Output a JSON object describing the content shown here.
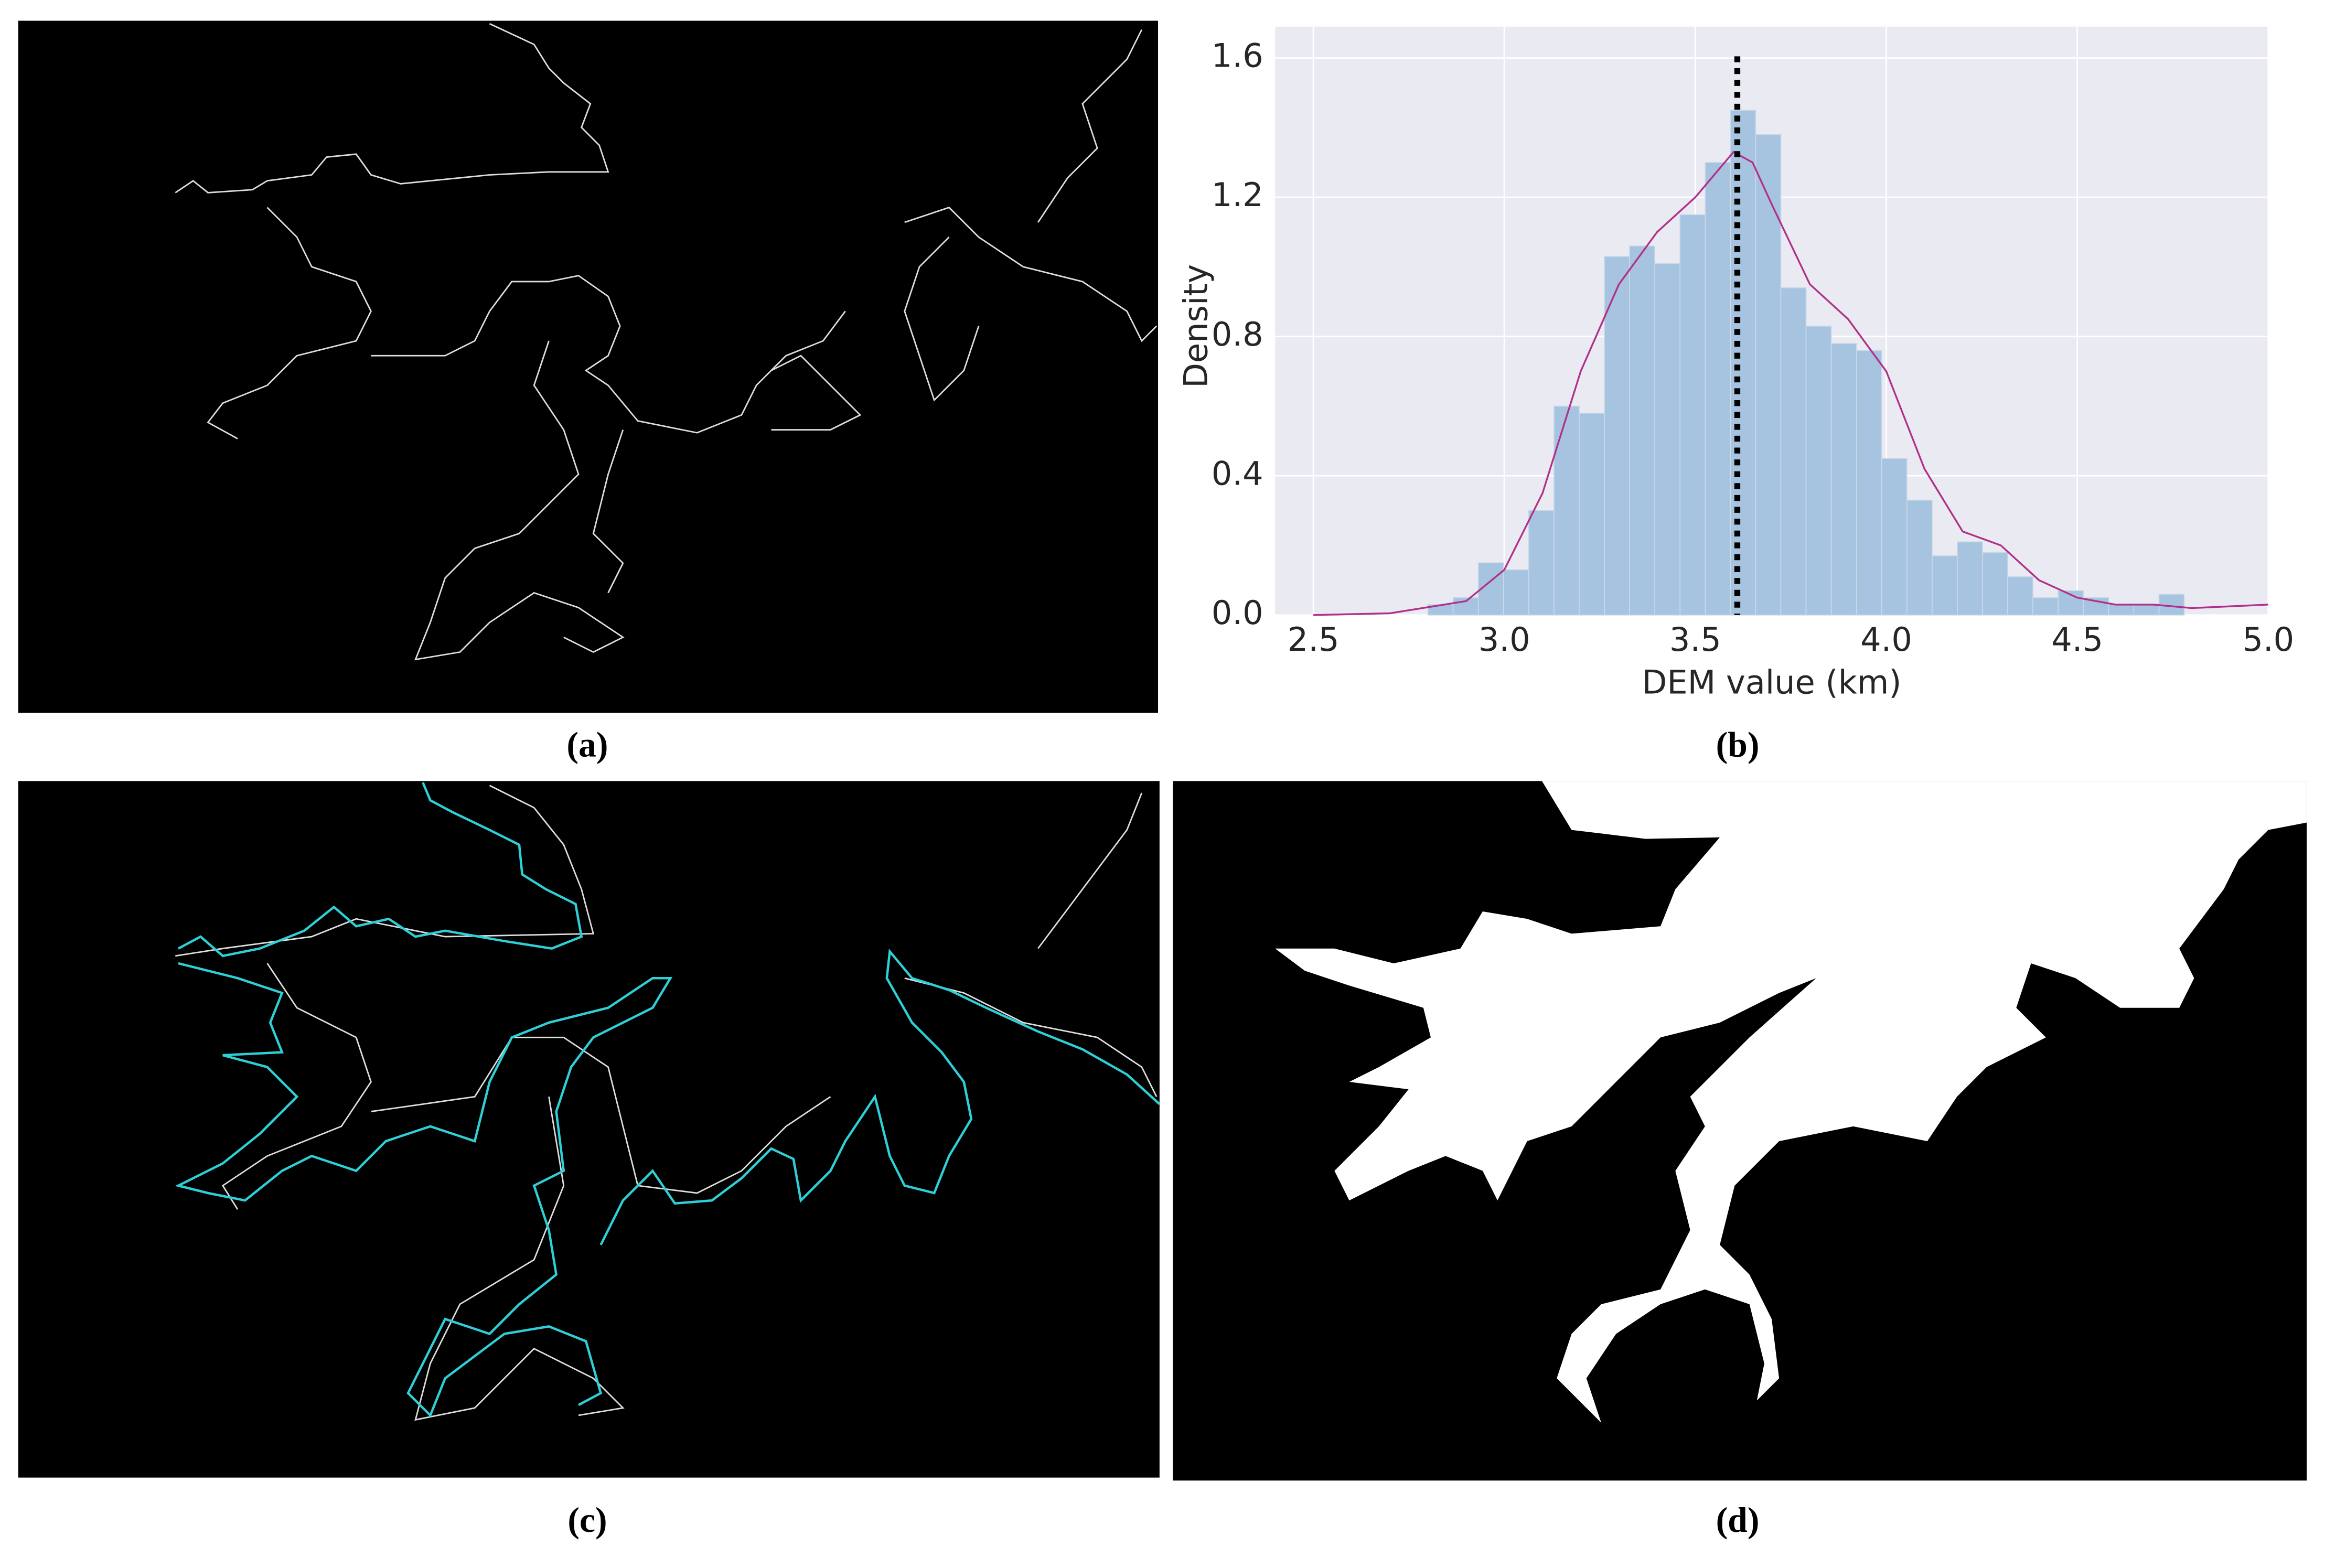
{
  "panel_labels": [
    "(a)",
    "(b)",
    "(c)",
    "(d)"
  ],
  "chart_data": {
    "type": "histogram",
    "xlabel": "DEM value (km)",
    "ylabel": "Density",
    "bins": [
      2.8,
      2.866,
      2.932,
      2.998,
      3.064,
      3.13,
      3.196,
      3.262,
      3.328,
      3.394,
      3.46,
      3.526,
      3.592,
      3.658,
      3.724,
      3.79,
      3.856,
      3.922,
      3.988,
      4.054,
      4.12,
      4.186,
      4.252,
      4.318,
      4.384,
      4.45,
      4.516,
      4.582,
      4.648,
      4.714,
      4.78
    ],
    "values": [
      0.03,
      0.05,
      0.15,
      0.13,
      0.3,
      0.6,
      0.58,
      1.03,
      1.06,
      1.01,
      1.15,
      1.3,
      1.45,
      1.38,
      0.94,
      0.83,
      0.78,
      0.76,
      0.45,
      0.33,
      0.17,
      0.21,
      0.18,
      0.11,
      0.05,
      0.07,
      0.05,
      0.03,
      0.03,
      0.06
    ],
    "color": "#a6c4df",
    "kde": {
      "color": "#b0308a",
      "x": [
        2.5,
        2.7,
        2.9,
        3.0,
        3.1,
        3.2,
        3.3,
        3.4,
        3.5,
        3.6,
        3.65,
        3.7,
        3.8,
        3.9,
        4.0,
        4.1,
        4.2,
        4.3,
        4.4,
        4.5,
        4.6,
        4.7,
        4.8,
        5.0
      ],
      "values": [
        0,
        0.005,
        0.04,
        0.13,
        0.35,
        0.7,
        0.95,
        1.1,
        1.2,
        1.33,
        1.3,
        1.18,
        0.95,
        0.85,
        0.7,
        0.42,
        0.24,
        0.2,
        0.1,
        0.05,
        0.03,
        0.03,
        0.02,
        0.03
      ]
    },
    "mean_line": 3.61,
    "xlim": [
      2.4,
      5.0
    ],
    "ylim": [
      0,
      1.69
    ],
    "xticks": [
      2.5,
      {
        "value": 3,
        "label": "3.0"
      },
      3.5,
      {
        "value": 4,
        "label": "4.0"
      },
      4.5,
      {
        "value": 5,
        "label": "5.0"
      }
    ],
    "yticks": [
      {
        "value": 0,
        "label": "0.0"
      },
      0.4,
      0.8,
      1.2,
      1.6
    ],
    "grid": true,
    "background": "#eaeaf2"
  }
}
